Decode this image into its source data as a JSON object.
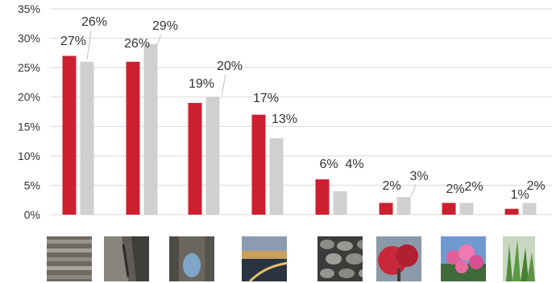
{
  "chart_data": {
    "type": "bar",
    "categories": [
      "",
      "",
      "",
      "",
      "",
      "",
      "",
      ""
    ],
    "series": [
      {
        "values": [
          27,
          26,
          19,
          17,
          6,
          2,
          2,
          1
        ],
        "color": "#cc2030"
      },
      {
        "values": [
          26,
          29,
          20,
          13,
          4,
          3,
          2,
          2
        ],
        "color": "#d0d0d0"
      }
    ],
    "data_labels": [
      [
        "27%",
        "26%",
        "19%",
        "17%",
        "6%",
        "2%",
        "2%",
        "1%"
      ],
      [
        "26%",
        "29%",
        "20%",
        "13%",
        "4%",
        "3%",
        "2%",
        "2%"
      ]
    ],
    "yticks": [
      "0%",
      "5%",
      "10%",
      "15%",
      "20%",
      "25%",
      "30%",
      "35%"
    ],
    "ylim": [
      0,
      35
    ],
    "grid": true,
    "legend": "none",
    "title": "",
    "xlabel": "",
    "ylabel": ""
  },
  "thumbnails": [
    {
      "icon": "stone-stairs-photo"
    },
    {
      "icon": "tree-trunk-photo"
    },
    {
      "icon": "rock-arch-photo"
    },
    {
      "icon": "city-night-road-photo"
    },
    {
      "icon": "cobblestone-photo"
    },
    {
      "icon": "red-flowering-tree-photo"
    },
    {
      "icon": "pink-flower-bush-photo"
    },
    {
      "icon": "green-grass-photo"
    }
  ]
}
